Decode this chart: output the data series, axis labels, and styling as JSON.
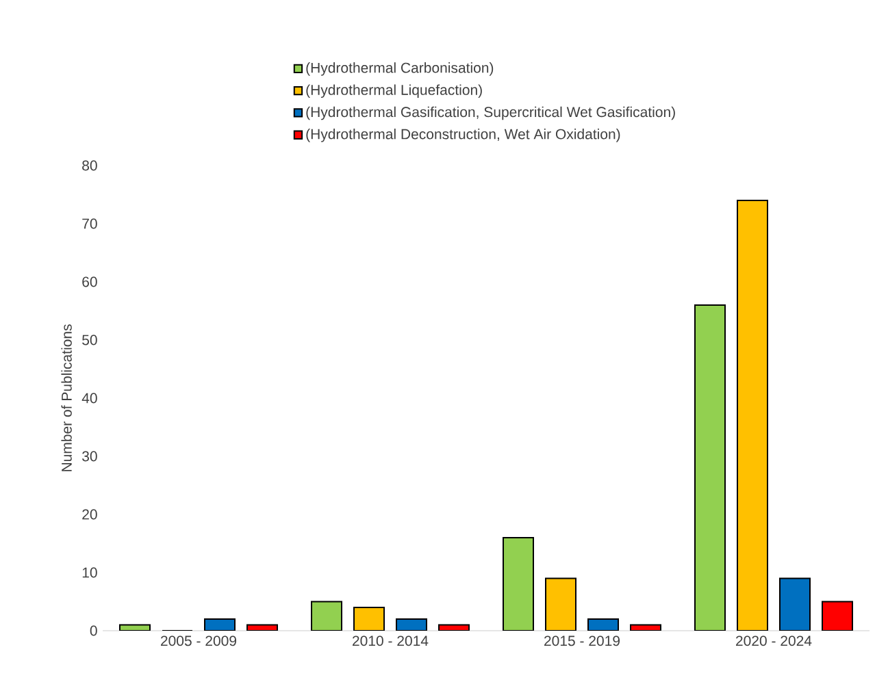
{
  "chart_data": {
    "type": "bar",
    "ylabel": "Number of Publications",
    "categories": [
      "2005 - 2009",
      "2010 - 2014",
      "2015 - 2019",
      "2020 - 2024"
    ],
    "series": [
      {
        "name": "(Hydrothermal Carbonisation)",
        "color": "#92d050",
        "values": [
          1,
          5,
          16,
          56
        ]
      },
      {
        "name": "(Hydrothermal Liquefaction)",
        "color": "#ffc000",
        "values": [
          0,
          4,
          9,
          74
        ]
      },
      {
        "name": "(Hydrothermal Gasification, Supercritical Wet Gasification)",
        "color": "#0070c0",
        "values": [
          2,
          2,
          2,
          9
        ]
      },
      {
        "name": "(Hydrothermal Deconstruction, Wet Air Oxidation)",
        "color": "#ff0000",
        "values": [
          1,
          1,
          1,
          5
        ]
      }
    ],
    "ylim": [
      0,
      80
    ],
    "yticks": [
      0,
      10,
      20,
      30,
      40,
      50,
      60,
      70,
      80
    ],
    "grid": false,
    "legend": "top"
  }
}
